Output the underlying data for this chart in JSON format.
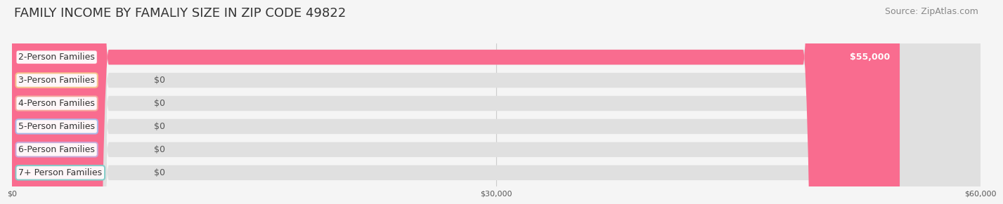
{
  "title": "FAMILY INCOME BY FAMALIY SIZE IN ZIP CODE 49822",
  "source": "Source: ZipAtlas.com",
  "categories": [
    "2-Person Families",
    "3-Person Families",
    "4-Person Families",
    "5-Person Families",
    "6-Person Families",
    "7+ Person Families"
  ],
  "values": [
    55000,
    0,
    0,
    0,
    0,
    0
  ],
  "bar_colors": [
    "#F96C8F",
    "#F5C48C",
    "#F5A89C",
    "#A8B8E8",
    "#C8A8D8",
    "#80CCC8"
  ],
  "value_labels": [
    "$55,000",
    "$0",
    "$0",
    "$0",
    "$0",
    "$0"
  ],
  "xlim": [
    0,
    60000
  ],
  "xticks": [
    0,
    30000,
    60000
  ],
  "xticklabels": [
    "$0",
    "$30,000",
    "$60,000"
  ],
  "background_color": "#f5f5f5",
  "bar_bg_color": "#e0e0e0",
  "title_fontsize": 13,
  "source_fontsize": 9,
  "label_fontsize": 9,
  "value_fontsize": 9,
  "bar_height": 0.65,
  "fig_width": 14.06,
  "fig_height": 3.05
}
